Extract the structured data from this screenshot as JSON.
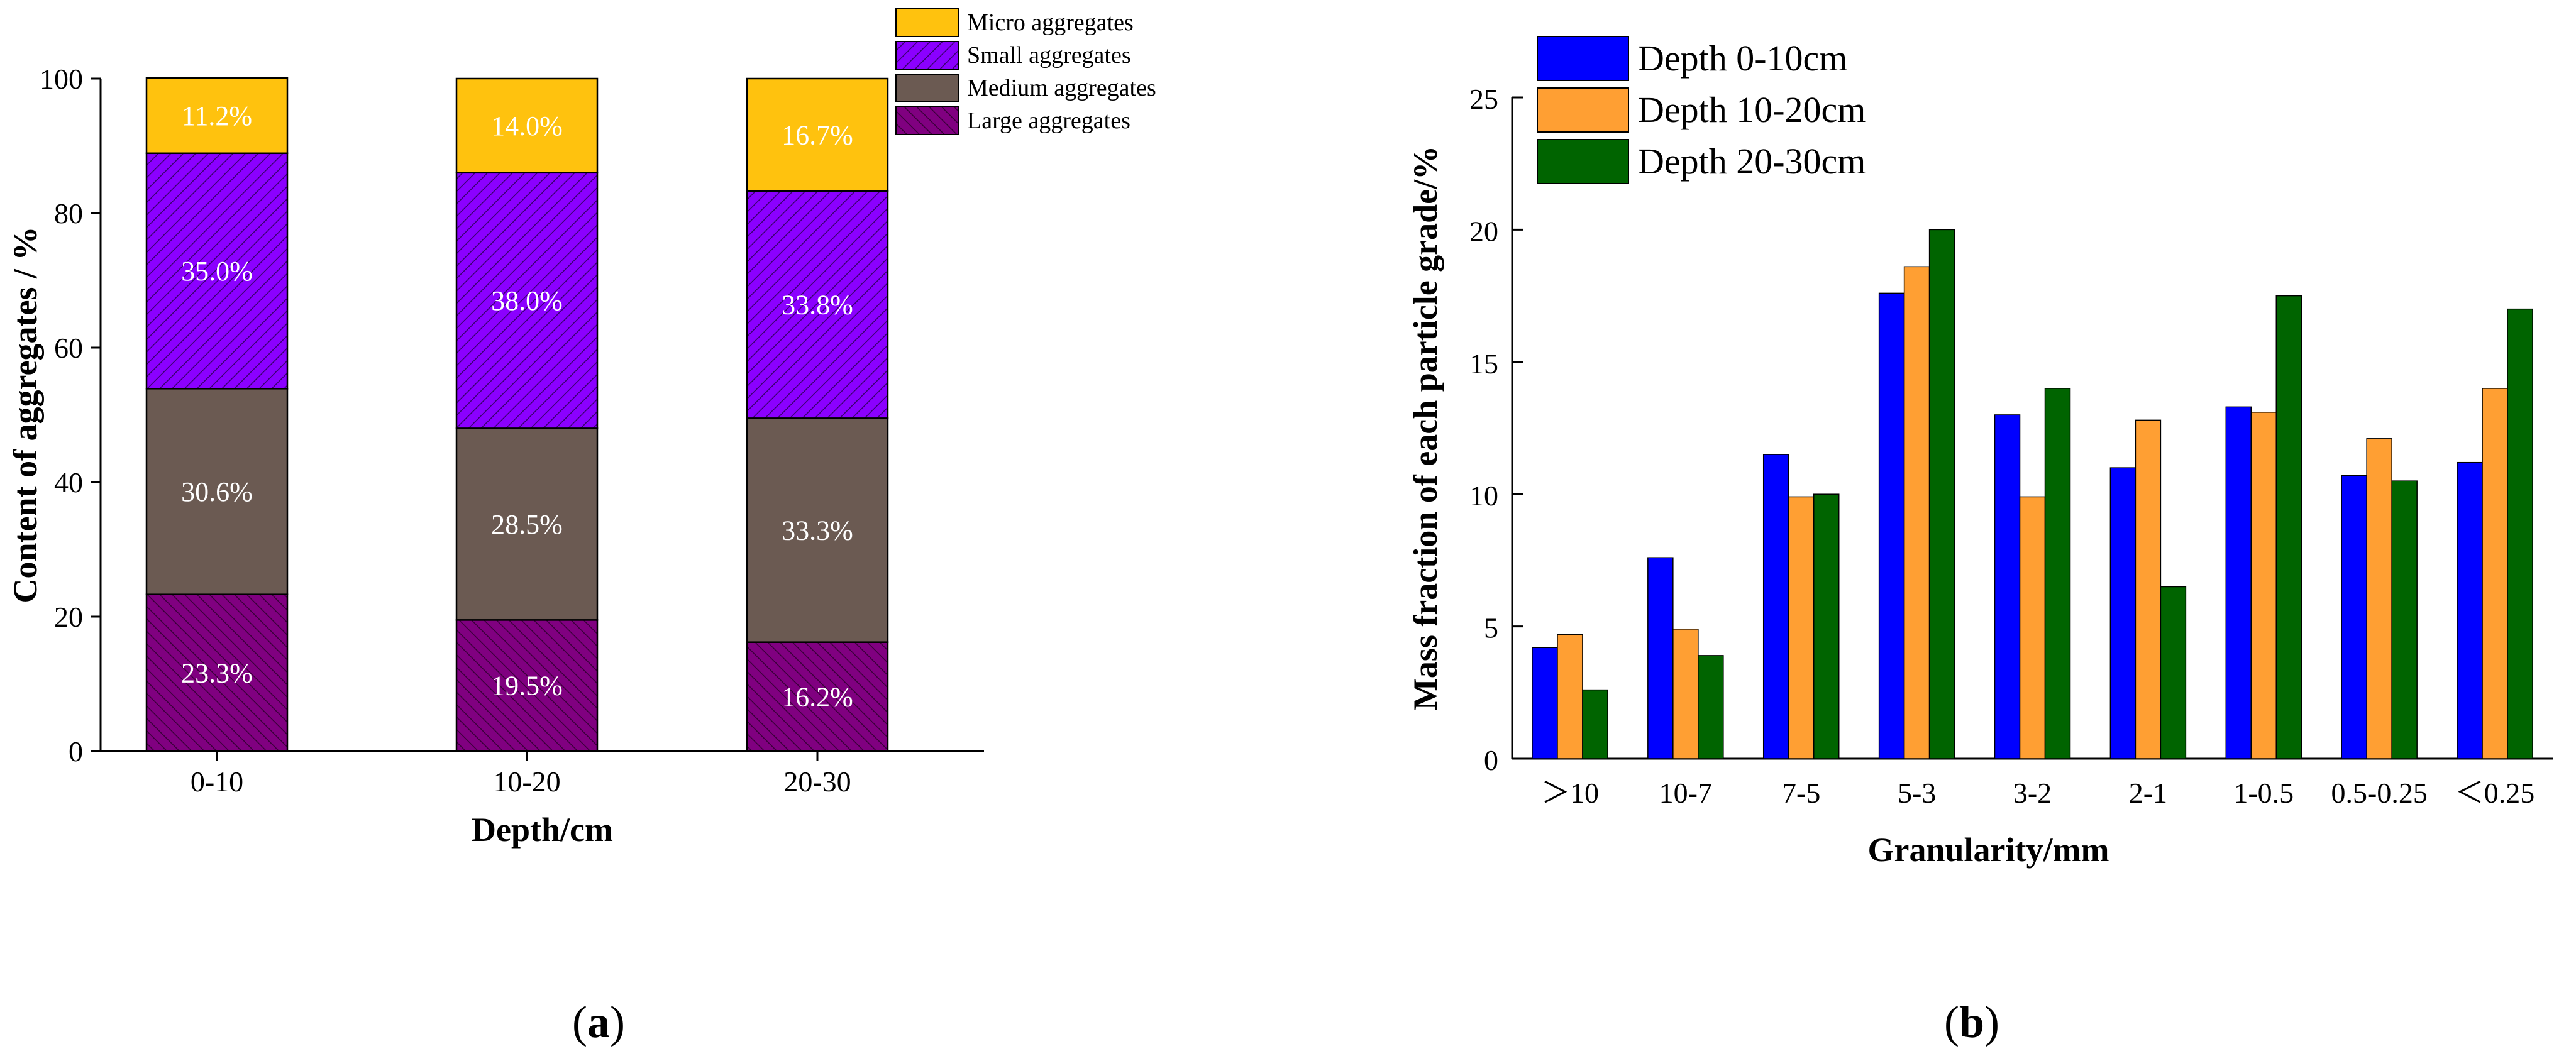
{
  "panel_labels": {
    "a_open": "(",
    "a_letter": "a",
    "a_close": ")",
    "b_open": "(",
    "b_letter": "b",
    "b_close": ")"
  },
  "colors": {
    "micro": "#FFC20E",
    "small": "#8B00FF",
    "medium": "#6B5A52",
    "large": "#800080",
    "depth_0_10": "#0000FF",
    "depth_10_20": "#FF9F33",
    "depth_20_30": "#006400"
  },
  "chart_data": [
    {
      "type": "bar",
      "stacked": true,
      "title": "",
      "xlabel": "Depth/cm",
      "ylabel": "Content of aggregates / %",
      "ylim": [
        0,
        100
      ],
      "yticks": [
        0,
        20,
        40,
        60,
        80,
        100
      ],
      "categories": [
        "0-10",
        "10-20",
        "20-30"
      ],
      "legend_position": "top-right",
      "series": [
        {
          "name": "Large aggregates",
          "color_key": "large",
          "values": [
            23.3,
            19.5,
            16.2
          ],
          "labels": [
            "23.3%",
            "19.5%",
            "16.2%"
          ]
        },
        {
          "name": "Medium aggregates",
          "color_key": "medium",
          "values": [
            30.6,
            28.5,
            33.3
          ],
          "labels": [
            "30.6%",
            "28.5%",
            "33.3%"
          ]
        },
        {
          "name": "Small aggregates",
          "color_key": "small",
          "values": [
            35.0,
            38.0,
            33.8
          ],
          "labels": [
            "35.0%",
            "38.0%",
            "33.8%"
          ]
        },
        {
          "name": "Micro aggregates",
          "color_key": "micro",
          "values": [
            11.2,
            14.0,
            16.7
          ],
          "labels": [
            "11.2%",
            "14.0%",
            "16.7%"
          ]
        }
      ],
      "legend_order": [
        "Micro aggregates",
        "Small aggregates",
        "Medium aggregates",
        "Large aggregates"
      ]
    },
    {
      "type": "bar",
      "stacked": false,
      "title": "",
      "xlabel": "Granularity/mm",
      "ylabel": "Mass fraction of each particle grade/%",
      "ylim": [
        0,
        25
      ],
      "yticks": [
        0,
        5,
        10,
        15,
        20,
        25
      ],
      "categories": [
        "＞10",
        "10-7",
        "7-5",
        "5-3",
        "3-2",
        "2-1",
        "1-0.5",
        "0.5-0.25",
        "＜0.25"
      ],
      "legend_position": "top-left",
      "series": [
        {
          "name": "Depth 0-10cm",
          "color_key": "depth_0_10",
          "values": [
            4.2,
            7.6,
            11.5,
            17.6,
            13.0,
            11.0,
            13.3,
            10.7,
            11.2
          ]
        },
        {
          "name": "Depth 10-20cm",
          "color_key": "depth_10_20",
          "values": [
            4.7,
            4.9,
            9.9,
            18.6,
            9.9,
            12.8,
            13.1,
            12.1,
            14.0
          ]
        },
        {
          "name": "Depth 20-30cm",
          "color_key": "depth_20_30",
          "values": [
            2.6,
            3.9,
            10.0,
            20.0,
            14.0,
            6.5,
            17.5,
            10.5,
            17.0
          ]
        }
      ]
    }
  ]
}
